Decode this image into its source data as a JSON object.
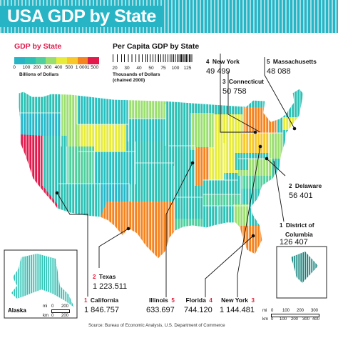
{
  "title": "USA GDP by State",
  "legend_gdp": {
    "title": "GDP by State",
    "ticks": [
      "0",
      "100",
      "200",
      "300",
      "400",
      "500",
      "1 000",
      "1 500"
    ],
    "unit": "Billions of Dollars",
    "colors": [
      "#27b5c6",
      "#2cc1b4",
      "#4fcf9e",
      "#9adf6d",
      "#e7ec3a",
      "#f7c827",
      "#f58420",
      "#e21a4c"
    ]
  },
  "legend_percapita": {
    "title": "Per Capita GDP by State",
    "ticks": [
      "20",
      "30",
      "40",
      "50",
      "75",
      "100",
      "125"
    ],
    "unit_line1": "Thousands of Dollars",
    "unit_line2": "(chained 2000)"
  },
  "callouts": {
    "new_york_pc": {
      "rank": "4",
      "name": "New York",
      "value": "49 499"
    },
    "connecticut": {
      "rank": "3",
      "name": "Connecticut",
      "value": "50 758"
    },
    "massachusetts": {
      "rank": "5",
      "name": "Massachusetts",
      "value": "48 088"
    },
    "delaware": {
      "rank": "2",
      "name": "Delaware",
      "value": "56 401"
    },
    "dc": {
      "rank": "1",
      "name_line1": "District of",
      "name_line2": "Columbia",
      "value": "126 407"
    },
    "texas": {
      "rank": "2",
      "name": "Texas",
      "value": "1 223.511"
    },
    "california": {
      "rank": "1",
      "name": "California",
      "value": "1 846.757"
    },
    "illinois": {
      "rank": "5",
      "name": "Illinois",
      "value": "633.697"
    },
    "florida": {
      "rank": "4",
      "name": "Florida",
      "value": "744.120"
    },
    "new_york_gdp": {
      "rank": "3",
      "name": "New York",
      "value": "1 144.481"
    }
  },
  "alaska_label": "Alaska",
  "scale_alaska": {
    "mi": "mi",
    "km": "km",
    "ticks_mi": [
      "0",
      "200"
    ],
    "ticks_km": [
      "0",
      "200"
    ]
  },
  "scale_main": {
    "mi": "mi",
    "km": "km",
    "ticks_mi": [
      "0",
      "100",
      "200",
      "300"
    ],
    "ticks_km": [
      "0",
      "100",
      "200",
      "300",
      "400"
    ]
  },
  "source": "Source: Bureau of Economic Analysis, U.S. Department of Commerce",
  "colors": {
    "banner": "#27b5c6",
    "rank_highlight": "#e31b38"
  }
}
